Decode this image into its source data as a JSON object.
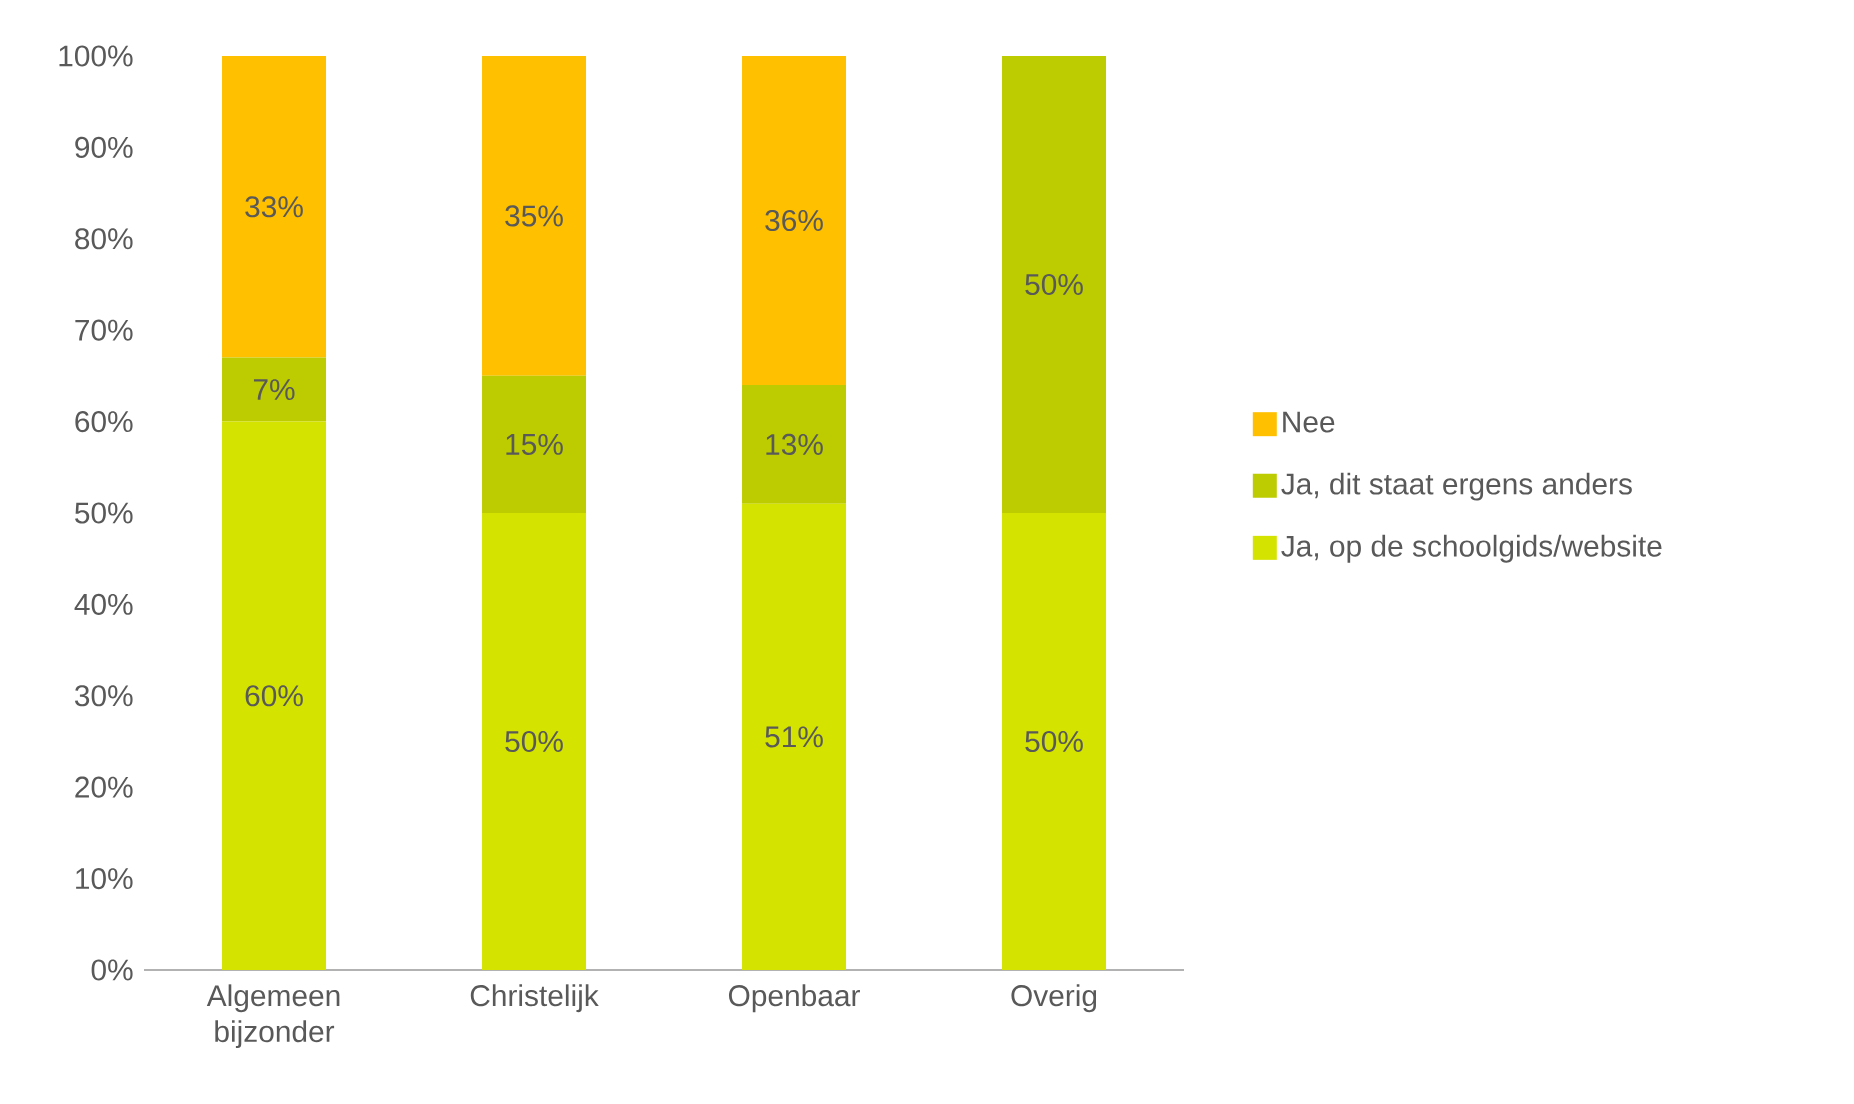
{
  "chart_data": {
    "type": "bar",
    "stacked": true,
    "categories": [
      "Algemeen bijzonder",
      "Christelijk",
      "Openbaar",
      "Overig"
    ],
    "series": [
      {
        "name": "Ja, op de schoolgids/website",
        "color": "#d5e300",
        "values": [
          60,
          50,
          51,
          50
        ],
        "value_labels": [
          "60%",
          "50%",
          "51%",
          "50%"
        ]
      },
      {
        "name": "Ja, dit staat ergens anders",
        "color": "#bdcc00",
        "values": [
          7,
          15,
          13,
          50
        ],
        "value_labels": [
          "7%",
          "15%",
          "13%",
          "50%"
        ]
      },
      {
        "name": "Nee",
        "color": "#ffc000",
        "values": [
          33,
          35,
          36,
          0
        ],
        "value_labels": [
          "33%",
          "35%",
          "36%",
          null
        ]
      }
    ],
    "ylim": [
      0,
      100
    ],
    "yticks": [
      {
        "value": 0,
        "label": "0%"
      },
      {
        "value": 10,
        "label": "10%"
      },
      {
        "value": 20,
        "label": "20%"
      },
      {
        "value": 30,
        "label": "30%"
      },
      {
        "value": 40,
        "label": "40%"
      },
      {
        "value": 50,
        "label": "50%"
      },
      {
        "value": 60,
        "label": "60%"
      },
      {
        "value": 70,
        "label": "70%"
      },
      {
        "value": 80,
        "label": "80%"
      },
      {
        "value": 90,
        "label": "90%"
      },
      {
        "value": 100,
        "label": "100%"
      }
    ],
    "legend": "right"
  }
}
